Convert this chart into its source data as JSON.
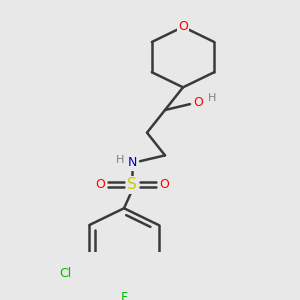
{
  "bg_color": "#e8e8e8",
  "bond_color": "#3a3a3a",
  "atom_colors": {
    "O": "#ff0000",
    "N": "#0000cc",
    "S": "#cccc00",
    "Cl": "#00bb00",
    "F": "#00bb00",
    "H": "#808080",
    "C": "#3a3a3a"
  },
  "bond_width": 1.8,
  "figsize": [
    3.0,
    3.0
  ],
  "dpi": 100
}
